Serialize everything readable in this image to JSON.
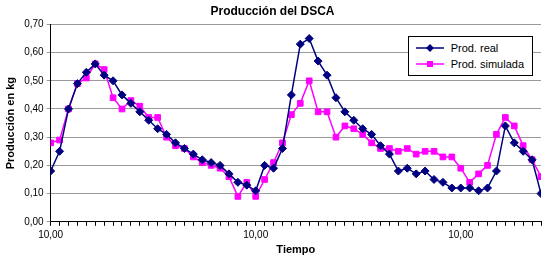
{
  "chart_data": {
    "type": "line",
    "title": "Producción del DSCA",
    "x_label": "Tiempo",
    "y_label": "Producción en kg",
    "categories": [
      "10,00",
      null,
      null,
      null,
      null,
      null,
      null,
      null,
      null,
      null,
      null,
      null,
      null,
      null,
      null,
      null,
      null,
      null,
      null,
      null,
      null,
      null,
      null,
      "10,00",
      null,
      null,
      null,
      null,
      null,
      null,
      null,
      null,
      null,
      null,
      null,
      null,
      null,
      null,
      null,
      null,
      null,
      null,
      null,
      null,
      null,
      null,
      "10,00",
      null,
      null,
      null,
      null,
      null,
      null,
      null,
      null,
      null
    ],
    "series": [
      {
        "name": "Prod. real",
        "color": "#000080",
        "marker": "diamond",
        "line_style": "solid",
        "values": [
          0.18,
          0.25,
          0.4,
          0.49,
          0.53,
          0.56,
          0.52,
          0.5,
          0.45,
          0.42,
          0.39,
          0.36,
          0.33,
          0.31,
          0.28,
          0.26,
          0.24,
          0.22,
          0.21,
          0.2,
          0.17,
          0.14,
          0.13,
          0.11,
          0.2,
          0.19,
          0.26,
          0.45,
          0.63,
          0.65,
          0.57,
          0.52,
          0.44,
          0.39,
          0.36,
          0.33,
          0.31,
          0.27,
          0.24,
          0.18,
          0.19,
          0.17,
          0.18,
          0.15,
          0.14,
          0.12,
          0.12,
          0.12,
          0.11,
          0.12,
          0.18,
          0.34,
          0.28,
          0.25,
          0.22,
          0.1
        ]
      },
      {
        "name": "Prod. simulada",
        "color": "#ff00ff",
        "marker": "square",
        "line_style": "solid",
        "values": [
          0.28,
          0.29,
          0.4,
          0.49,
          0.51,
          0.56,
          0.54,
          0.44,
          0.4,
          0.43,
          0.41,
          0.37,
          0.37,
          0.3,
          0.27,
          0.26,
          0.23,
          0.21,
          0.2,
          0.19,
          0.16,
          0.09,
          0.14,
          0.09,
          0.15,
          0.21,
          0.28,
          0.38,
          0.42,
          0.5,
          0.39,
          0.39,
          0.3,
          0.34,
          0.33,
          0.31,
          0.28,
          0.26,
          0.26,
          0.25,
          0.26,
          0.24,
          0.25,
          0.25,
          0.23,
          0.23,
          0.19,
          0.14,
          0.17,
          0.2,
          0.31,
          0.37,
          0.34,
          0.27,
          0.22,
          0.16
        ]
      }
    ],
    "ylim": [
      0,
      0.7
    ],
    "yticks": [
      {
        "value": 0,
        "label": "0,00"
      },
      {
        "value": 0.1,
        "label": "0,10"
      },
      {
        "value": 0.2,
        "label": "0,20"
      },
      {
        "value": 0.3,
        "label": "0,30"
      },
      {
        "value": 0.4,
        "label": "0,40"
      },
      {
        "value": 0.5,
        "label": "0,50"
      },
      {
        "value": 0.6,
        "label": "0,60"
      },
      {
        "value": 0.7,
        "label": "0,70"
      }
    ],
    "grid": true,
    "legend": "top-right"
  }
}
